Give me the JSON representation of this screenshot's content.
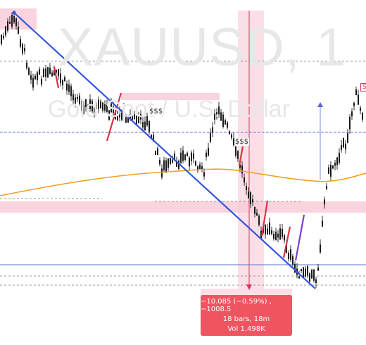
{
  "watermark": {
    "symbol": "XAUUSD, 1",
    "name": "Gold Spot / U.S. Dollar"
  },
  "liquidity_labels": {
    "left": "$$$",
    "right": "$$$"
  },
  "edge_tag": "S",
  "measurement": {
    "change": "−10.085 (−0.59%) , −1008.5",
    "bars_time": "18 bars, 18m",
    "volume": "Vol 1.498K"
  },
  "colors": {
    "candle": "#1a1a1a",
    "trendline": "#3355dd",
    "moving_average": "#f0a020",
    "zone": "#f7c9d7",
    "up_impulse": "#7b3fd0",
    "down_impulse": "#d93240",
    "measure_bg": "#f05461"
  }
}
